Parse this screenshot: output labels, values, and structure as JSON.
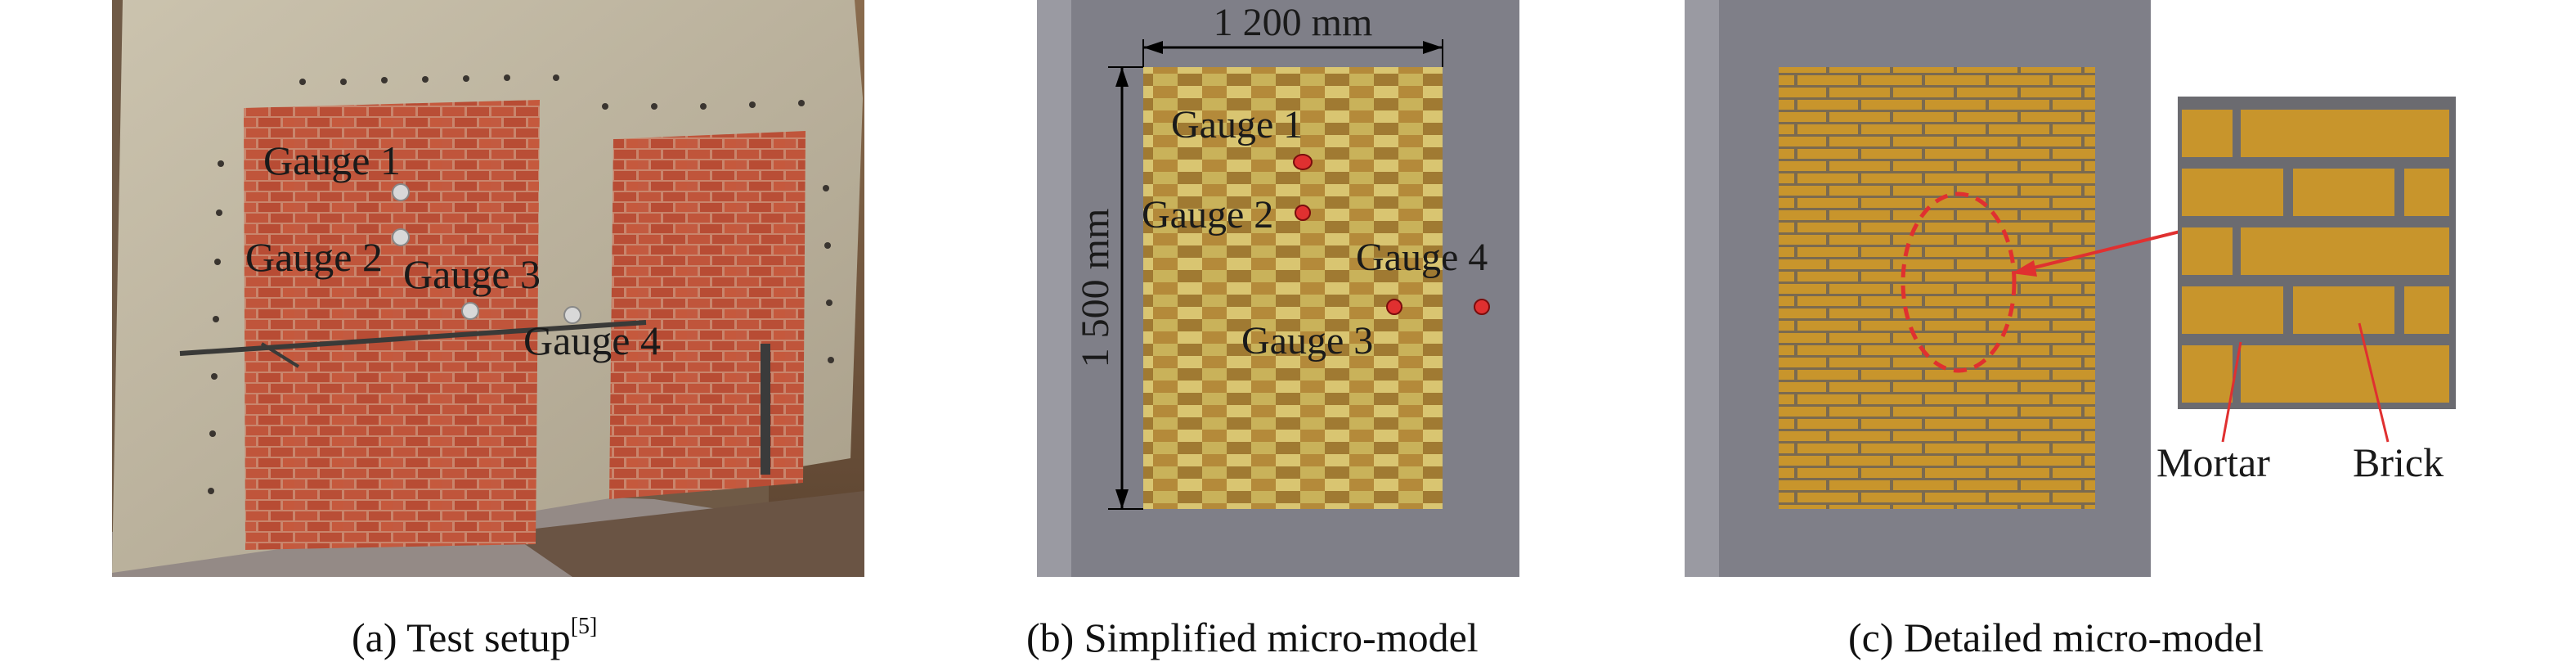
{
  "panel_a": {
    "caption_main": "(a) Test setup",
    "caption_ref": "[5]",
    "gauges": [
      "Gauge 1",
      "Gauge 2",
      "Gauge 3",
      "Gauge 4"
    ]
  },
  "panel_b": {
    "caption": "(b) Simplified micro-model",
    "width_dim": "1 200 mm",
    "height_dim": "1 500 mm",
    "gauges": [
      "Gauge 1",
      "Gauge 2",
      "Gauge 3",
      "Gauge 4"
    ]
  },
  "panel_c": {
    "caption": "(c) Detailed micro-model",
    "mortar_label": "Mortar",
    "brick_label": "Brick"
  },
  "colors": {
    "brick_red": "#b65a40",
    "concrete": "#bdb3a0",
    "gray_bg": "#7f7f88",
    "brick_yellow": "#c99a2e",
    "mortar": "#6b6b70",
    "marker_red": "#e03030"
  }
}
